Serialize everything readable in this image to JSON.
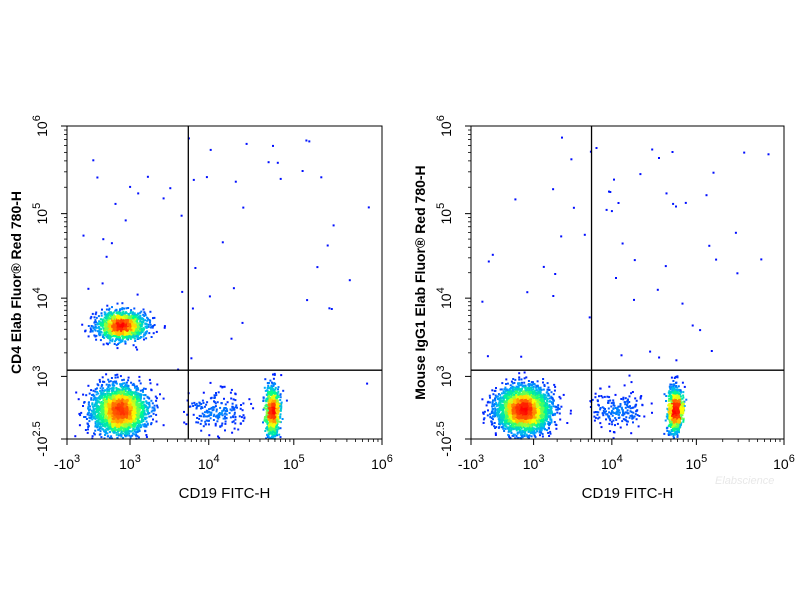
{
  "figure": {
    "watermark": "Elabscience"
  },
  "chart_data": [
    {
      "type": "scatter",
      "style": "flow cytometry density dot plot, biexponential axes",
      "xlabel": "CD19 FITC-H",
      "ylabel": "CD4 Elab Fluor® Red 780-H",
      "x_ticks": [
        {
          "value": -1000,
          "label": "-10",
          "exp": "3"
        },
        {
          "value": 1000,
          "label": "10",
          "exp": "3"
        },
        {
          "value": 10000,
          "label": "10",
          "exp": "4"
        },
        {
          "value": 100000,
          "label": "10",
          "exp": "5"
        },
        {
          "value": 1000000,
          "label": "10",
          "exp": "6"
        }
      ],
      "y_ticks": [
        {
          "value": -316,
          "label": "-10",
          "exp": "2.5"
        },
        {
          "value": 1000,
          "label": "10",
          "exp": "3"
        },
        {
          "value": 10000,
          "label": "10",
          "exp": "4"
        },
        {
          "value": 100000,
          "label": "10",
          "exp": "5"
        },
        {
          "value": 1000000,
          "label": "10",
          "exp": "6"
        }
      ],
      "xlim": [
        -1000,
        1000000
      ],
      "ylim": [
        -316,
        1000000
      ],
      "quadrant_gate": {
        "x": 5500,
        "y": 1200
      },
      "populations": [
        {
          "name": "CD19- CD4+",
          "x": 700,
          "y": 4600,
          "sx": 0.55,
          "sy": 0.3,
          "events": 1500
        },
        {
          "name": "CD19- CD4-",
          "x": 650,
          "y": 300,
          "sx": 0.6,
          "sy": 0.55,
          "events": 2600
        },
        {
          "name": "CD19+ CD4-",
          "x": 55000,
          "y": 280,
          "sx": 0.15,
          "sy": 0.55,
          "events": 1000
        },
        {
          "name": "bridge",
          "x": 12000,
          "y": 300,
          "sx": 0.65,
          "sy": 0.45,
          "events": 200
        }
      ],
      "colormap": [
        "#0000ff",
        "#00aaff",
        "#00ff88",
        "#ffff00",
        "#ff6600",
        "#ff0000"
      ]
    },
    {
      "type": "scatter",
      "style": "flow cytometry density dot plot, biexponential axes",
      "xlabel": "CD19 FITC-H",
      "ylabel": "Mouse IgG1 Elab Fluor® Red 780-H",
      "x_ticks": [
        {
          "value": -1000,
          "label": "-10",
          "exp": "3"
        },
        {
          "value": 1000,
          "label": "10",
          "exp": "3"
        },
        {
          "value": 10000,
          "label": "10",
          "exp": "4"
        },
        {
          "value": 100000,
          "label": "10",
          "exp": "5"
        },
        {
          "value": 1000000,
          "label": "10",
          "exp": "6"
        }
      ],
      "y_ticks": [
        {
          "value": -316,
          "label": "-10",
          "exp": "2.5"
        },
        {
          "value": 1000,
          "label": "10",
          "exp": "3"
        },
        {
          "value": 10000,
          "label": "10",
          "exp": "4"
        },
        {
          "value": 100000,
          "label": "10",
          "exp": "5"
        },
        {
          "value": 1000000,
          "label": "10",
          "exp": "6"
        }
      ],
      "xlim": [
        -1000,
        1000000
      ],
      "ylim": [
        -316,
        1000000
      ],
      "quadrant_gate": {
        "x": 5500,
        "y": 1200
      },
      "populations": [
        {
          "name": "CD19-",
          "x": 650,
          "y": 320,
          "sx": 0.6,
          "sy": 0.5,
          "events": 3200
        },
        {
          "name": "CD19+",
          "x": 55000,
          "y": 300,
          "sx": 0.15,
          "sy": 0.5,
          "events": 1200
        },
        {
          "name": "bridge",
          "x": 12000,
          "y": 330,
          "sx": 0.65,
          "sy": 0.4,
          "events": 200
        }
      ],
      "colormap": [
        "#0000ff",
        "#00aaff",
        "#00ff88",
        "#ffff00",
        "#ff6600",
        "#ff0000"
      ]
    }
  ]
}
